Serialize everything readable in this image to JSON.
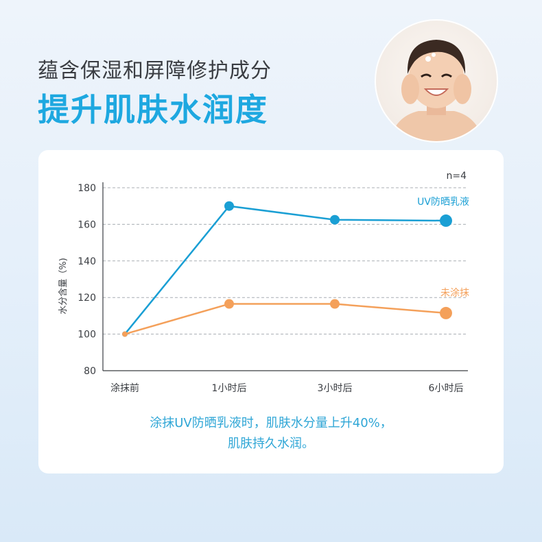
{
  "headline": {
    "line1": "蕴含保湿和屏障修护成分",
    "line2": "提升肌肤水润度"
  },
  "colors": {
    "accent": "#1ea8e0",
    "series_treated": "#1a9fd4",
    "series_untreated": "#f4a05a",
    "caption": "#2fa6d6"
  },
  "caption": {
    "line1": "涂抹UV防晒乳液时，肌肤水分量上升40%，",
    "line2": "肌肤持久水润。"
  },
  "chart_data": {
    "type": "line",
    "note": "n=4",
    "ylabel": "水分含量（%)",
    "xlabel": "",
    "categories": [
      "涂抹前",
      "1小时后",
      "3小时后",
      "6小时后"
    ],
    "ylim": [
      80,
      180
    ],
    "yticks": [
      80,
      100,
      120,
      140,
      160,
      180
    ],
    "grid": true,
    "series": [
      {
        "name": "UV防晒乳液",
        "values": [
          100,
          170,
          162.5,
          162
        ]
      },
      {
        "name": "未涂抹",
        "values": [
          100,
          116.5,
          116.5,
          111.5
        ]
      }
    ]
  }
}
